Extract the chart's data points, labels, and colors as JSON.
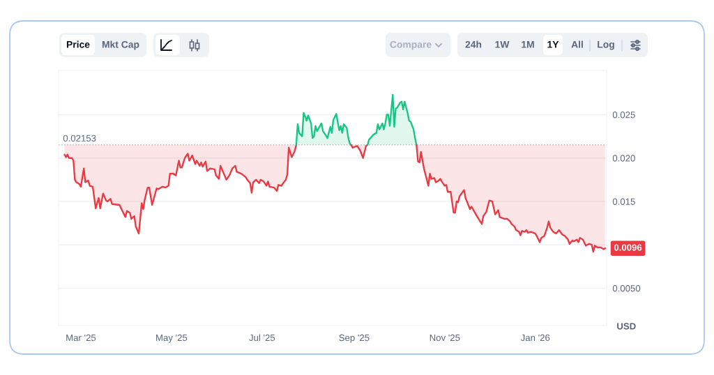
{
  "chart_data": {
    "type": "line",
    "annotations": [
      "Price",
      "Mkt Cap",
      "Compare",
      "24h",
      "1W",
      "1M",
      "1Y",
      "All",
      "Log",
      {
        "text": "0.0096",
        "x": "2026-02-17",
        "y": 0.0096
      }
    ],
    "ylabel": "USD",
    "xlim": [
      "2025-02-14",
      "2026-02-18"
    ],
    "xticks": [
      {
        "value": "2025-03-01",
        "label": "Mar '25"
      },
      {
        "value": "2025-05-01",
        "label": "May '25"
      },
      {
        "value": "2025-07-01",
        "label": "Jul '25"
      },
      {
        "value": "2025-09-01",
        "label": "Sep '25"
      },
      {
        "value": "2025-11-01",
        "label": "Nov '25"
      },
      {
        "value": "2026-01-01",
        "label": "Jan '26"
      }
    ],
    "ylim": [
      0.0007,
      0.0301
    ],
    "yticks": [
      {
        "value": 0.005,
        "label": "0.0050"
      },
      {
        "value": 0.01,
        "label": null
      },
      0.015,
      {
        "value": 0.02,
        "label": "0.020"
      },
      0.025
    ],
    "grid": "y",
    "ref_lines": [
      {
        "axis": "y",
        "value": 0.02153,
        "label": "0.02153",
        "color": "#b4bcc8",
        "line_style": "dotted"
      }
    ],
    "series": [
      {
        "color": "#ea3943",
        "x": [
          "2025-02-18",
          "2025-02-19",
          "2025-02-20",
          "2025-02-21",
          "2025-02-23",
          "2025-02-24",
          "2025-02-25",
          "2025-02-26",
          "2025-02-28",
          "2025-03-01",
          "2025-03-03",
          "2025-03-04",
          "2025-03-06",
          "2025-03-07",
          "2025-03-09",
          "2025-03-11",
          "2025-03-13",
          "2025-03-14",
          "2025-03-16",
          "2025-03-18",
          "2025-03-19",
          "2025-03-21",
          "2025-03-22",
          "2025-03-27",
          "2025-03-31",
          "2025-04-01",
          "2025-04-03",
          "2025-04-04",
          "2025-04-06",
          "2025-04-07",
          "2025-04-09",
          "2025-04-11",
          "2025-04-12",
          "2025-04-13",
          "2025-04-15",
          "2025-04-16",
          "2025-04-18",
          "2025-04-21",
          "2025-04-22",
          "2025-04-25",
          "2025-04-27",
          "2025-04-29",
          "2025-04-30",
          "2025-05-02",
          "2025-05-04",
          "2025-05-06",
          "2025-05-07",
          "2025-05-08",
          "2025-05-10",
          "2025-05-12",
          "2025-05-13",
          "2025-05-15",
          "2025-05-17",
          "2025-05-18",
          "2025-05-20",
          "2025-05-21",
          "2025-05-22",
          "2025-05-24",
          "2025-05-25",
          "2025-05-27",
          "2025-05-30",
          "2025-05-31",
          "2025-06-02",
          "2025-06-03",
          "2025-06-05",
          "2025-06-07",
          "2025-06-09",
          "2025-06-11",
          "2025-06-13",
          "2025-06-14",
          "2025-06-17",
          "2025-06-20",
          "2025-06-21",
          "2025-06-23",
          "2025-06-24",
          "2025-06-25",
          "2025-06-27",
          "2025-06-29",
          "2025-06-30",
          "2025-07-02",
          "2025-07-04",
          "2025-07-05",
          "2025-07-06",
          "2025-07-09",
          "2025-07-11",
          "2025-07-12",
          "2025-07-14",
          "2025-07-17",
          "2025-07-18",
          "2025-07-19",
          "2025-07-21",
          "2025-07-23",
          "2025-07-24"
        ],
        "values": [
          0.0204,
          0.0201,
          0.0204,
          0.02,
          0.02,
          0.0197,
          0.0175,
          0.0172,
          0.017,
          0.0167,
          0.0188,
          0.0172,
          0.0174,
          0.0168,
          0.0167,
          0.0142,
          0.0154,
          0.0142,
          0.0159,
          0.0151,
          0.015,
          0.0153,
          0.0147,
          0.0146,
          0.0132,
          0.0139,
          0.0137,
          0.013,
          0.0133,
          0.0121,
          0.0113,
          0.0148,
          0.0141,
          0.0152,
          0.0166,
          0.0166,
          0.0146,
          0.0165,
          0.0164,
          0.0167,
          0.0166,
          0.0168,
          0.0182,
          0.0182,
          0.018,
          0.0197,
          0.0189,
          0.0189,
          0.02,
          0.0205,
          0.0197,
          0.0203,
          0.0193,
          0.0197,
          0.0191,
          0.0195,
          0.019,
          0.0196,
          0.0185,
          0.0188,
          0.0187,
          0.018,
          0.0176,
          0.0191,
          0.0183,
          0.0175,
          0.018,
          0.0188,
          0.0191,
          0.0184,
          0.0182,
          0.0178,
          0.0175,
          0.0171,
          0.016,
          0.0172,
          0.0175,
          0.0171,
          0.0175,
          0.0173,
          0.0168,
          0.0173,
          0.0167,
          0.0166,
          0.0162,
          0.0169,
          0.0168,
          0.0175,
          0.0181,
          0.0212,
          0.0201,
          0.0208,
          0.0215
        ],
        "lower": [
          0.0204,
          0.0201,
          0.0204,
          0.02,
          0.02,
          0.0197,
          0.0175,
          0.0172,
          0.017,
          0.0167,
          0.0188,
          0.0172,
          0.0174,
          0.0168,
          0.0167,
          0.0142,
          0.0154,
          0.0142,
          0.0159,
          0.0151,
          0.015,
          0.0153,
          0.0147,
          0.0146,
          0.0132,
          0.0139,
          0.0137,
          0.013,
          0.0133,
          0.0121,
          0.0113,
          0.0148,
          0.0141,
          0.0152,
          0.0166,
          0.0166,
          0.0146,
          0.0165,
          0.0164,
          0.0167,
          0.0166,
          0.0168,
          0.0182,
          0.0182,
          0.018,
          0.0197,
          0.0189,
          0.0189,
          0.02,
          0.0205,
          0.0197,
          0.0203,
          0.0193,
          0.0197,
          0.0191,
          0.0195,
          0.019,
          0.0196,
          0.0185,
          0.0188,
          0.0187,
          0.018,
          0.0176,
          0.0191,
          0.0183,
          0.0175,
          0.018,
          0.0188,
          0.0191,
          0.0184,
          0.0182,
          0.0178,
          0.0175,
          0.0171,
          0.016,
          0.0172,
          0.0175,
          0.0171,
          0.0175,
          0.0173,
          0.0168,
          0.0173,
          0.0167,
          0.0166,
          0.0162,
          0.0169,
          0.0168,
          0.0175,
          0.0181,
          0.0212,
          0.0201,
          0.0208,
          0.0215
        ],
        "upper": [
          0.02153,
          0.02153,
          0.02153,
          0.02153,
          0.02153,
          0.02153,
          0.02153,
          0.02153,
          0.02153,
          0.02153,
          0.02153,
          0.02153,
          0.02153,
          0.02153,
          0.02153,
          0.02153,
          0.02153,
          0.02153,
          0.02153,
          0.02153,
          0.02153,
          0.02153,
          0.02153,
          0.02153,
          0.02153,
          0.02153,
          0.02153,
          0.02153,
          0.02153,
          0.02153,
          0.02153,
          0.02153,
          0.02153,
          0.02153,
          0.02153,
          0.02153,
          0.02153,
          0.02153,
          0.02153,
          0.02153,
          0.02153,
          0.02153,
          0.02153,
          0.02153,
          0.02153,
          0.02153,
          0.02153,
          0.02153,
          0.02153,
          0.02153,
          0.02153,
          0.02153,
          0.02153,
          0.02153,
          0.02153,
          0.02153,
          0.02153,
          0.02153,
          0.02153,
          0.02153,
          0.02153,
          0.02153,
          0.02153,
          0.02153,
          0.02153,
          0.02153,
          0.02153,
          0.02153,
          0.02153,
          0.02153,
          0.02153,
          0.02153,
          0.02153,
          0.02153,
          0.02153,
          0.02153,
          0.02153,
          0.02153,
          0.02153,
          0.02153,
          0.02153,
          0.02153,
          0.02153,
          0.02153,
          0.02153,
          0.02153,
          0.02153,
          0.02153,
          0.02153,
          0.02153,
          0.02153,
          0.02153,
          0.02153
        ]
      },
      {
        "type": "area",
        "color": "#16c784",
        "x": [
          "2025-07-24",
          "2025-07-25",
          "2025-07-26",
          "2025-07-28",
          "2025-07-29",
          "2025-07-30",
          "2025-07-31",
          "2025-08-01",
          "2025-08-03",
          "2025-08-04",
          "2025-08-05",
          "2025-08-06",
          "2025-08-07",
          "2025-08-10",
          "2025-08-11",
          "2025-08-13",
          "2025-08-14",
          "2025-08-16",
          "2025-08-17",
          "2025-08-18",
          "2025-08-20",
          "2025-08-21",
          "2025-08-22",
          "2025-08-23",
          "2025-08-24",
          "2025-08-25",
          "2025-08-27",
          "2025-08-28",
          "2025-08-29",
          "2025-08-30"
        ],
        "values": [
          0.0215,
          0.0239,
          0.0229,
          0.0225,
          0.0252,
          0.0248,
          0.0243,
          0.0249,
          0.024,
          0.0223,
          0.0225,
          0.0237,
          0.0231,
          0.024,
          0.0231,
          0.0226,
          0.0223,
          0.0236,
          0.0229,
          0.0244,
          0.0251,
          0.0241,
          0.0232,
          0.0237,
          0.0229,
          0.0239,
          0.0235,
          0.0224,
          0.0217,
          0.0215
        ]
      },
      {
        "color": "#ea3943",
        "x": [
          "2025-08-30",
          "2025-08-31",
          "2025-09-03",
          "2025-09-05",
          "2025-09-07",
          "2025-09-09",
          "2025-09-10"
        ],
        "values": [
          0.0215,
          0.0212,
          0.0214,
          0.0209,
          0.02,
          0.0214,
          0.0215
        ],
        "lower": [
          0.0215,
          0.0212,
          0.0214,
          0.0209,
          0.02,
          0.0214,
          0.0215
        ],
        "upper": [
          0.02153,
          0.02153,
          0.02153,
          0.02153,
          0.02153,
          0.02153,
          0.02153
        ]
      },
      {
        "type": "area",
        "color": "#16c784",
        "x": [
          "2025-09-10",
          "2025-09-11",
          "2025-09-14",
          "2025-09-16",
          "2025-09-17",
          "2025-09-18",
          "2025-09-20",
          "2025-09-21",
          "2025-09-22",
          "2025-09-23",
          "2025-09-24",
          "2025-09-25",
          "2025-09-27",
          "2025-09-28",
          "2025-09-29",
          "2025-09-30",
          "2025-10-02",
          "2025-10-03",
          "2025-10-04",
          "2025-10-05",
          "2025-10-07",
          "2025-10-08",
          "2025-10-09",
          "2025-10-11",
          "2025-10-12",
          "2025-10-13"
        ],
        "values": [
          0.0215,
          0.0221,
          0.0227,
          0.0229,
          0.0239,
          0.0233,
          0.024,
          0.0233,
          0.024,
          0.025,
          0.025,
          0.0237,
          0.0273,
          0.0236,
          0.0257,
          0.0258,
          0.0264,
          0.0265,
          0.0256,
          0.0265,
          0.0252,
          0.0243,
          0.0242,
          0.0233,
          0.0223,
          0.0215
        ]
      },
      {
        "color": "#ea3943",
        "x": [
          "2025-10-13",
          "2025-10-14",
          "2025-10-15",
          "2025-10-16",
          "2025-10-18",
          "2025-10-21",
          "2025-10-22",
          "2025-10-23",
          "2025-10-25",
          "2025-10-26",
          "2025-10-28",
          "2025-10-29",
          "2025-10-30",
          "2025-11-01",
          "2025-11-02",
          "2025-11-03",
          "2025-11-05",
          "2025-11-07",
          "2025-11-08",
          "2025-11-09",
          "2025-11-10",
          "2025-11-11",
          "2025-11-14",
          "2025-11-15",
          "2025-11-18",
          "2025-11-19",
          "2025-11-21",
          "2025-11-23",
          "2025-11-26",
          "2025-11-27",
          "2025-11-29",
          "2025-12-01",
          "2025-12-03",
          "2025-12-05",
          "2025-12-07",
          "2025-12-08",
          "2025-12-11",
          "2025-12-13",
          "2025-12-15",
          "2025-12-16",
          "2025-12-18",
          "2025-12-19",
          "2025-12-21",
          "2025-12-22",
          "2025-12-23",
          "2025-12-25",
          "2025-12-26",
          "2025-12-27",
          "2025-12-29",
          "2026-01-01",
          "2026-01-02",
          "2026-01-04",
          "2026-01-05",
          "2026-01-07",
          "2026-01-09",
          "2026-01-10",
          "2026-01-11",
          "2026-01-13",
          "2026-01-15",
          "2026-01-17",
          "2026-01-19",
          "2026-01-21",
          "2026-01-23",
          "2026-01-24",
          "2026-01-26",
          "2026-01-27",
          "2026-01-29",
          "2026-01-30",
          "2026-01-31",
          "2026-02-02",
          "2026-02-04",
          "2026-02-06",
          "2026-02-08",
          "2026-02-09",
          "2026-02-10",
          "2026-02-12",
          "2026-02-14",
          "2026-02-16",
          "2026-02-17"
        ],
        "values": [
          0.0215,
          0.0196,
          0.0195,
          0.0207,
          0.0188,
          0.0168,
          0.0182,
          0.0176,
          0.0177,
          0.0172,
          0.0174,
          0.0176,
          0.0173,
          0.0168,
          0.0169,
          0.0161,
          0.0161,
          0.0137,
          0.0137,
          0.015,
          0.0149,
          0.0156,
          0.0163,
          0.0154,
          0.0141,
          0.0144,
          0.0138,
          0.0132,
          0.0124,
          0.0133,
          0.0138,
          0.0151,
          0.015,
          0.0135,
          0.014,
          0.0132,
          0.013,
          0.013,
          0.0127,
          0.0124,
          0.0121,
          0.0117,
          0.0115,
          0.0111,
          0.0116,
          0.0115,
          0.0117,
          0.0114,
          0.0115,
          0.0113,
          0.011,
          0.0103,
          0.0108,
          0.011,
          0.012,
          0.0127,
          0.012,
          0.0115,
          0.0113,
          0.0117,
          0.0112,
          0.011,
          0.0106,
          0.0101,
          0.0105,
          0.0104,
          0.0106,
          0.0103,
          0.0108,
          0.0106,
          0.0099,
          0.0101,
          0.01,
          0.0092,
          0.0099,
          0.0097,
          0.0097,
          0.0095,
          0.0096
        ],
        "lower": [
          0.0215,
          0.0196,
          0.0195,
          0.0207,
          0.0188,
          0.0168,
          0.0182,
          0.0176,
          0.0177,
          0.0172,
          0.0174,
          0.0176,
          0.0173,
          0.0168,
          0.0169,
          0.0161,
          0.0161,
          0.0137,
          0.0137,
          0.015,
          0.0149,
          0.0156,
          0.0163,
          0.0154,
          0.0141,
          0.0144,
          0.0138,
          0.0132,
          0.0124,
          0.0133,
          0.0138,
          0.0151,
          0.015,
          0.0135,
          0.014,
          0.0132,
          0.013,
          0.013,
          0.0127,
          0.0124,
          0.0121,
          0.0117,
          0.0115,
          0.0111,
          0.0116,
          0.0115,
          0.0117,
          0.0114,
          0.0115,
          0.0113,
          0.011,
          0.0103,
          0.0108,
          0.011,
          0.012,
          0.0127,
          0.012,
          0.0115,
          0.0113,
          0.0117,
          0.0112,
          0.011,
          0.0106,
          0.0101,
          0.0105,
          0.0104,
          0.0106,
          0.0103,
          0.0108,
          0.0106,
          0.0099,
          0.0101,
          0.01,
          0.0092,
          0.0099,
          0.0097,
          0.0097,
          0.0095,
          0.0096
        ],
        "upper": [
          0.02153,
          0.02153,
          0.02153,
          0.02153,
          0.02153,
          0.02153,
          0.02153,
          0.02153,
          0.02153,
          0.02153,
          0.02153,
          0.02153,
          0.02153,
          0.02153,
          0.02153,
          0.02153,
          0.02153,
          0.02153,
          0.02153,
          0.02153,
          0.02153,
          0.02153,
          0.02153,
          0.02153,
          0.02153,
          0.02153,
          0.02153,
          0.02153,
          0.02153,
          0.02153,
          0.02153,
          0.02153,
          0.02153,
          0.02153,
          0.02153,
          0.02153,
          0.02153,
          0.02153,
          0.02153,
          0.02153,
          0.02153,
          0.02153,
          0.02153,
          0.02153,
          0.02153,
          0.02153,
          0.02153,
          0.02153,
          0.02153,
          0.02153,
          0.02153,
          0.02153,
          0.02153,
          0.02153,
          0.02153,
          0.02153,
          0.02153,
          0.02153,
          0.02153,
          0.02153,
          0.02153,
          0.02153,
          0.02153,
          0.02153,
          0.02153,
          0.02153,
          0.02153,
          0.02153,
          0.02153,
          0.02153,
          0.02153,
          0.02153,
          0.02153,
          0.02153,
          0.02153,
          0.02153,
          0.02153,
          0.02153,
          0.02153
        ]
      }
    ]
  }
}
